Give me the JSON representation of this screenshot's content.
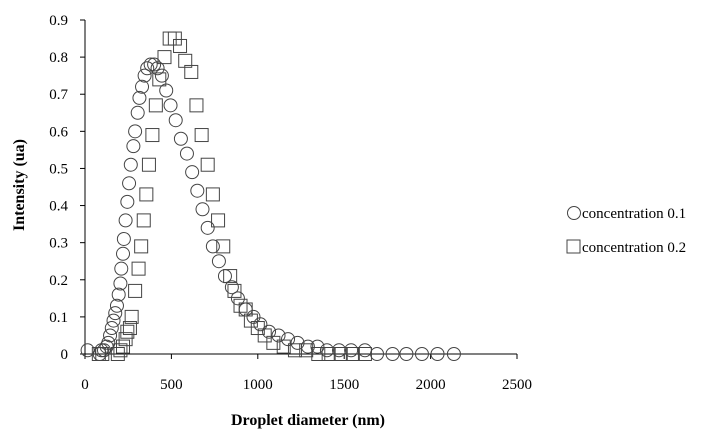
{
  "chart_data": {
    "type": "scatter",
    "title": "",
    "xlabel": "Droplet diameter (nm)",
    "ylabel": "Intensity (ua)",
    "xlim": [
      0,
      2500
    ],
    "ylim": [
      0,
      0.9
    ],
    "x_ticks": [
      "0",
      "500",
      "1000",
      "1500",
      "2000",
      "2500"
    ],
    "y_ticks": [
      "0",
      "0.1",
      "0.2",
      "0.3",
      "0.4",
      "0.5",
      "0.6",
      "0.7",
      "0.8",
      "0.9"
    ],
    "grid": false,
    "legend_position": "right",
    "series": [
      {
        "name": "concentration 0.1",
        "marker": "circle",
        "points": [
          [
            15,
            0.01
          ],
          [
            85,
            0.0
          ],
          [
            95,
            0.01
          ],
          [
            110,
            0.01
          ],
          [
            125,
            0.02
          ],
          [
            135,
            0.03
          ],
          [
            145,
            0.05
          ],
          [
            155,
            0.07
          ],
          [
            165,
            0.09
          ],
          [
            175,
            0.11
          ],
          [
            185,
            0.13
          ],
          [
            195,
            0.16
          ],
          [
            205,
            0.19
          ],
          [
            210,
            0.23
          ],
          [
            220,
            0.27
          ],
          [
            225,
            0.31
          ],
          [
            235,
            0.36
          ],
          [
            245,
            0.41
          ],
          [
            255,
            0.46
          ],
          [
            265,
            0.51
          ],
          [
            280,
            0.56
          ],
          [
            290,
            0.6
          ],
          [
            305,
            0.65
          ],
          [
            315,
            0.69
          ],
          [
            330,
            0.72
          ],
          [
            345,
            0.75
          ],
          [
            360,
            0.77
          ],
          [
            380,
            0.78
          ],
          [
            400,
            0.78
          ],
          [
            420,
            0.77
          ],
          [
            445,
            0.75
          ],
          [
            470,
            0.71
          ],
          [
            495,
            0.67
          ],
          [
            525,
            0.63
          ],
          [
            555,
            0.58
          ],
          [
            590,
            0.54
          ],
          [
            620,
            0.49
          ],
          [
            650,
            0.44
          ],
          [
            680,
            0.39
          ],
          [
            710,
            0.34
          ],
          [
            740,
            0.29
          ],
          [
            775,
            0.25
          ],
          [
            810,
            0.21
          ],
          [
            850,
            0.18
          ],
          [
            885,
            0.15
          ],
          [
            930,
            0.12
          ],
          [
            975,
            0.1
          ],
          [
            1015,
            0.08
          ],
          [
            1065,
            0.06
          ],
          [
            1120,
            0.05
          ],
          [
            1175,
            0.04
          ],
          [
            1230,
            0.03
          ],
          [
            1290,
            0.02
          ],
          [
            1345,
            0.02
          ],
          [
            1400,
            0.01
          ],
          [
            1470,
            0.01
          ],
          [
            1540,
            0.01
          ],
          [
            1620,
            0.01
          ],
          [
            1690,
            0.0
          ],
          [
            1780,
            0.0
          ],
          [
            1860,
            0.0
          ],
          [
            1950,
            0.0
          ],
          [
            2040,
            0.0
          ],
          [
            2135,
            0.0
          ]
        ]
      },
      {
        "name": "concentration 0.2",
        "marker": "square",
        "points": [
          [
            80,
            0.0
          ],
          [
            100,
            0.0
          ],
          [
            190,
            0.0
          ],
          [
            205,
            0.01
          ],
          [
            220,
            0.02
          ],
          [
            235,
            0.04
          ],
          [
            245,
            0.06
          ],
          [
            260,
            0.07
          ],
          [
            270,
            0.1
          ],
          [
            290,
            0.17
          ],
          [
            310,
            0.23
          ],
          [
            325,
            0.29
          ],
          [
            340,
            0.36
          ],
          [
            355,
            0.43
          ],
          [
            370,
            0.51
          ],
          [
            390,
            0.59
          ],
          [
            410,
            0.67
          ],
          [
            430,
            0.74
          ],
          [
            460,
            0.8
          ],
          [
            490,
            0.85
          ],
          [
            520,
            0.85
          ],
          [
            550,
            0.83
          ],
          [
            580,
            0.79
          ],
          [
            615,
            0.76
          ],
          [
            645,
            0.67
          ],
          [
            675,
            0.59
          ],
          [
            710,
            0.51
          ],
          [
            740,
            0.43
          ],
          [
            770,
            0.36
          ],
          [
            800,
            0.29
          ],
          [
            840,
            0.21
          ],
          [
            865,
            0.17
          ],
          [
            900,
            0.13
          ],
          [
            930,
            0.12
          ],
          [
            960,
            0.09
          ],
          [
            1000,
            0.07
          ],
          [
            1040,
            0.05
          ],
          [
            1090,
            0.03
          ],
          [
            1150,
            0.02
          ],
          [
            1215,
            0.01
          ],
          [
            1280,
            0.01
          ],
          [
            1350,
            0.0
          ],
          [
            1410,
            0.0
          ],
          [
            1480,
            0.0
          ],
          [
            1550,
            0.0
          ],
          [
            1620,
            0.0
          ]
        ]
      }
    ]
  }
}
